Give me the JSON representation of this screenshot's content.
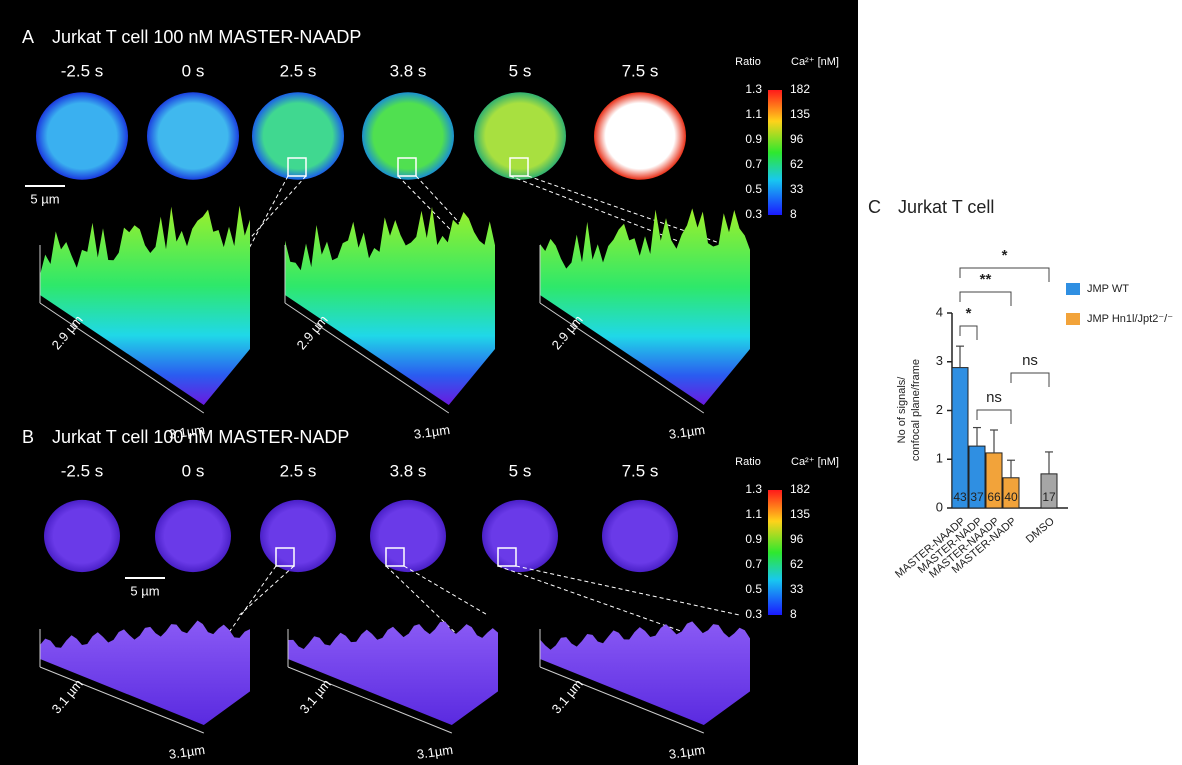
{
  "panel_a": {
    "label": "A",
    "title": "Jurkat T cell 100 nM MASTER-NAADP",
    "times": [
      "-2.5 s",
      "0 s",
      "2.5 s",
      "3.8 s",
      "5 s",
      "7.5 s"
    ],
    "scale_bar": "5 µm",
    "colorbar": {
      "left_title": "Ratio",
      "right_title": "Ca²⁺ [nM]",
      "left_ticks": [
        "1.3",
        "1.1",
        "0.9",
        "0.7",
        "0.5",
        "0.3"
      ],
      "right_ticks": [
        "182",
        "135",
        "96",
        "62",
        "33",
        "8"
      ]
    },
    "surfaces": [
      {
        "depth": "2.9 µm",
        "width": "3.1µm"
      },
      {
        "depth": "2.9 µm",
        "width": "3.1µm"
      },
      {
        "depth": "2.9 µm",
        "width": "3.1µm"
      }
    ]
  },
  "panel_b": {
    "label": "B",
    "title": "Jurkat T cell 100 nM MASTER-NADP",
    "times": [
      "-2.5 s",
      "0 s",
      "2.5 s",
      "3.8 s",
      "5 s",
      "7.5 s"
    ],
    "scale_bar": "5 µm",
    "colorbar": {
      "left_title": "Ratio",
      "right_title": "Ca²⁺ [nM]",
      "left_ticks": [
        "1.3",
        "1.1",
        "0.9",
        "0.7",
        "0.5",
        "0.3"
      ],
      "right_ticks": [
        "182",
        "135",
        "96",
        "62",
        "33",
        "8"
      ]
    },
    "surfaces": [
      {
        "depth": "3.1 µm",
        "width": "3.1µm"
      },
      {
        "depth": "3.1 µm",
        "width": "3.1µm"
      },
      {
        "depth": "3.1 µm",
        "width": "3.1µm"
      }
    ]
  },
  "chart_data": {
    "type": "bar",
    "label": "C",
    "title": "Jurkat T cell",
    "ylabel": [
      "No of signals/",
      "confocal plane/frame"
    ],
    "categories": [
      "MASTER-NAADP",
      "MASTER-NADP",
      "MASTER-NAADP",
      "MASTER-NADP",
      "DMSO"
    ],
    "values": [
      2.88,
      1.27,
      1.13,
      0.62,
      0.7
    ],
    "errors": [
      0.44,
      0.38,
      0.47,
      0.36,
      0.45
    ],
    "n_labels": [
      43,
      37,
      66,
      40,
      17
    ],
    "colors": [
      "#2f8fe2",
      "#2f8fe2",
      "#f2a33a",
      "#f2a33a",
      "#a6a6a6"
    ],
    "ylim": [
      0,
      4
    ],
    "yticks": [
      0,
      1,
      2,
      3,
      4
    ],
    "legend": [
      {
        "name": "JMP WT",
        "color": "#2f8fe2"
      },
      {
        "name": "JMP Hn1l/Jpt2⁻/⁻",
        "color": "#f2a33a"
      }
    ],
    "significance": [
      {
        "label": "*",
        "from": 0,
        "to": 1
      },
      {
        "label": "**",
        "from": 0,
        "to": 3
      },
      {
        "label": "*",
        "from": 0,
        "to": 4
      },
      {
        "label": "ns",
        "from": 1,
        "to": 3
      },
      {
        "label": "ns",
        "from": 3,
        "to": 4
      }
    ]
  }
}
